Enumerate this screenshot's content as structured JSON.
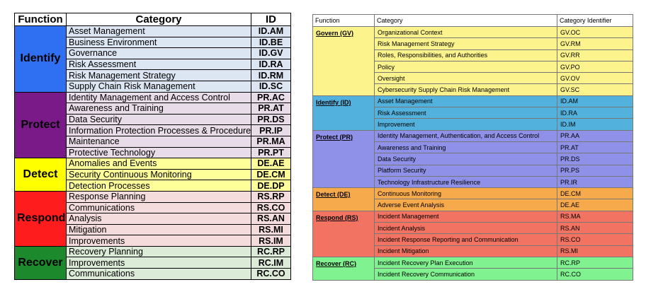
{
  "left_table": {
    "headers": [
      "Function",
      "Category",
      "ID"
    ],
    "groups": [
      {
        "function": "Identify",
        "color": "#2f6ff2",
        "row_color": "#dce6f2",
        "rows": [
          [
            "Asset Management",
            "ID.AM"
          ],
          [
            "Business Environment",
            "ID.BE"
          ],
          [
            "Governance",
            "ID.GV"
          ],
          [
            "Risk Assessment",
            "ID.RA"
          ],
          [
            "Risk Management Strategy",
            "ID.RM"
          ],
          [
            "Supply Chain Risk Management",
            "ID.SC"
          ]
        ]
      },
      {
        "function": "Protect",
        "color": "#7a1a88",
        "row_color": "#e9dce9",
        "rows": [
          [
            "Identity Management and Access Control",
            "PR.AC"
          ],
          [
            "Awareness and Training",
            "PR.AT"
          ],
          [
            "Data Security",
            "PR.DS"
          ],
          [
            "Information Protection Processes & Procedures",
            "PR.IP"
          ],
          [
            "Maintenance",
            "PR.MA"
          ],
          [
            "Protective Technology",
            "PR.PT"
          ]
        ]
      },
      {
        "function": "Detect",
        "color": "#ffff00",
        "row_color": "#ffff99",
        "rows": [
          [
            "Anomalies and Events",
            "DE.AE"
          ],
          [
            "Security Continuous Monitoring",
            "DE.CM"
          ],
          [
            "Detection Processes",
            "DE.DP"
          ]
        ]
      },
      {
        "function": "Respond",
        "color": "#ff1c1c",
        "row_color": "#f5dcdc",
        "rows": [
          [
            "Response Planning",
            "RS.RP"
          ],
          [
            "Communications",
            "RS.CO"
          ],
          [
            "Analysis",
            "RS.AN"
          ],
          [
            "Mitigation",
            "RS.MI"
          ],
          [
            "Improvements",
            "RS.IM"
          ]
        ]
      },
      {
        "function": "Recover",
        "color": "#1c8a2c",
        "row_color": "#dcebd8",
        "rows": [
          [
            "Recovery Planning",
            "RC.RP"
          ],
          [
            "Improvements",
            "RC.IM"
          ],
          [
            "Communications",
            "RC.CO"
          ]
        ]
      }
    ]
  },
  "right_table": {
    "headers": [
      "Function",
      "Category",
      "Category Identifier"
    ],
    "groups": [
      {
        "function": "Govern (GV)",
        "color": "#fcf38c",
        "rows": [
          [
            "Organizational Context",
            "GV.OC"
          ],
          [
            "Risk Management Strategy",
            "GV.RM"
          ],
          [
            "Roles, Responsibilities, and Authorities",
            "GV.RR"
          ],
          [
            "Policy",
            "GV.PO"
          ],
          [
            "Oversight",
            "GV.OV"
          ],
          [
            "Cybersecurity Supply Chain Risk Management",
            "GV.SC"
          ]
        ]
      },
      {
        "function": "Identify (ID)",
        "color": "#52b2dd",
        "rows": [
          [
            "Asset Management",
            "ID.AM"
          ],
          [
            "Risk Assessment",
            "ID.RA"
          ],
          [
            "Improvement",
            "ID.IM"
          ]
        ]
      },
      {
        "function": "Protect (PR)",
        "color": "#8f91e8",
        "rows": [
          [
            "Identity Management, Authentication, and Access Control",
            "PR.AA"
          ],
          [
            "Awareness and Training",
            "PR.AT"
          ],
          [
            "Data Security",
            "PR.DS"
          ],
          [
            "Platform Security",
            "PR.PS"
          ],
          [
            "Technology Infrastructure Resilience",
            "PR.IR"
          ]
        ]
      },
      {
        "function": "Detect (DE)",
        "color": "#f7aa4c",
        "rows": [
          [
            "Continuous Monitoring",
            "DE.CM"
          ],
          [
            "Adverse Event Analysis",
            "DE.AE"
          ]
        ]
      },
      {
        "function": "Respond (RS)",
        "color": "#f27361",
        "rows": [
          [
            "Incident Management",
            "RS.MA"
          ],
          [
            "Incident Analysis",
            "RS.AN"
          ],
          [
            "Incident Response Reporting and Communication",
            "RS.CO"
          ],
          [
            "Incident Mitigation",
            "RS.MI"
          ]
        ]
      },
      {
        "function": "Recover (RC)",
        "color": "#80f290",
        "rows": [
          [
            "Incident Recovery Plan Execution",
            "RC.RP"
          ],
          [
            "Incident Recovery Communication",
            "RC.CO"
          ]
        ]
      }
    ]
  }
}
